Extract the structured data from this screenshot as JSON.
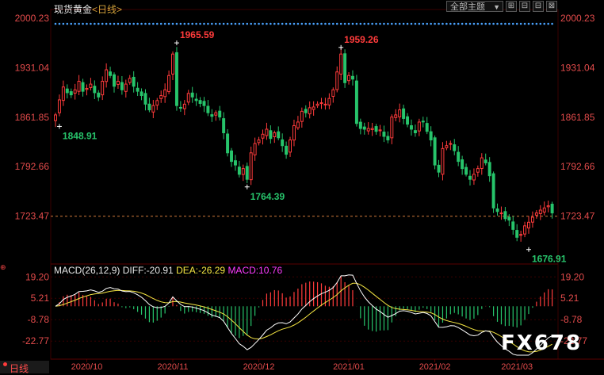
{
  "header": {
    "instrument": "现货黄金",
    "period_tag": "<日线>",
    "theme_button": "全部主题",
    "theme_arrow": "▼",
    "buttons": [
      "⊞",
      "⊟",
      "⊟",
      "⊠"
    ]
  },
  "footer": {
    "period": "日线"
  },
  "watermark": "FX678",
  "colors": {
    "up": "#ff3b3b",
    "down": "#27c46b",
    "diff_line": "#ffffff",
    "dea_line": "#f5e642",
    "macd_label": "#ff3bff",
    "axis_text": "#e34b4b",
    "grid": "#3a0000"
  },
  "chart_data": [
    {
      "type": "candlestick",
      "y_ticks": [
        2000.23,
        1931.04,
        1861.85,
        1792.66,
        1723.47
      ],
      "ylim": [
        1660,
        2010
      ],
      "x_ticks": [
        "2020/10",
        "2020/11",
        "2020/12",
        "2021/01",
        "2021/02",
        "2021/03"
      ],
      "x_tick_index": [
        8,
        30,
        52,
        75,
        97,
        118
      ],
      "last_price": 1723.47,
      "annotations": [
        {
          "label": "1965.59",
          "index": 31,
          "value": 1965.59,
          "color": "up"
        },
        {
          "label": "1848.91",
          "index": 1,
          "value": 1848.91,
          "color": "down"
        },
        {
          "label": "1959.26",
          "index": 73,
          "value": 1959.26,
          "color": "up"
        },
        {
          "label": "1764.39",
          "index": 49,
          "value": 1764.39,
          "color": "down"
        },
        {
          "label": "1676.91",
          "index": 121,
          "value": 1676.91,
          "color": "down"
        }
      ],
      "close": [
        1865,
        1886,
        1904,
        1896,
        1893,
        1900,
        1912,
        1898,
        1902,
        1908,
        1896,
        1890,
        1912,
        1928,
        1920,
        1905,
        1912,
        1900,
        1908,
        1916,
        1905,
        1898,
        1892,
        1880,
        1872,
        1878,
        1885,
        1892,
        1900,
        1920,
        1950,
        1878,
        1875,
        1880,
        1895,
        1890,
        1885,
        1881,
        1878,
        1868,
        1863,
        1868,
        1862,
        1840,
        1812,
        1800,
        1795,
        1782,
        1790,
        1775,
        1812,
        1825,
        1830,
        1838,
        1845,
        1832,
        1840,
        1833,
        1822,
        1810,
        1830,
        1850,
        1855,
        1870,
        1868,
        1875,
        1876,
        1880,
        1882,
        1880,
        1888,
        1900,
        1925,
        1950,
        1910,
        1920,
        1915,
        1853,
        1846,
        1845,
        1846,
        1846,
        1842,
        1844,
        1835,
        1830,
        1862,
        1865,
        1872,
        1860,
        1852,
        1845,
        1840,
        1855,
        1856,
        1842,
        1830,
        1795,
        1785,
        1818,
        1822,
        1825,
        1815,
        1800,
        1790,
        1782,
        1775,
        1782,
        1790,
        1805,
        1798,
        1780,
        1735,
        1730,
        1728,
        1720,
        1718,
        1705,
        1694,
        1698,
        1710,
        1715,
        1722,
        1728,
        1732,
        1735,
        1738,
        1728
      ],
      "macd": {
        "label": "MACD(26,12,9)",
        "diff": -20.91,
        "dea": -26.29,
        "macd": 10.76,
        "y_ticks": [
          19.2,
          5.21,
          -8.78,
          -22.77
        ],
        "ylim": [
          -32,
          24
        ]
      }
    }
  ]
}
